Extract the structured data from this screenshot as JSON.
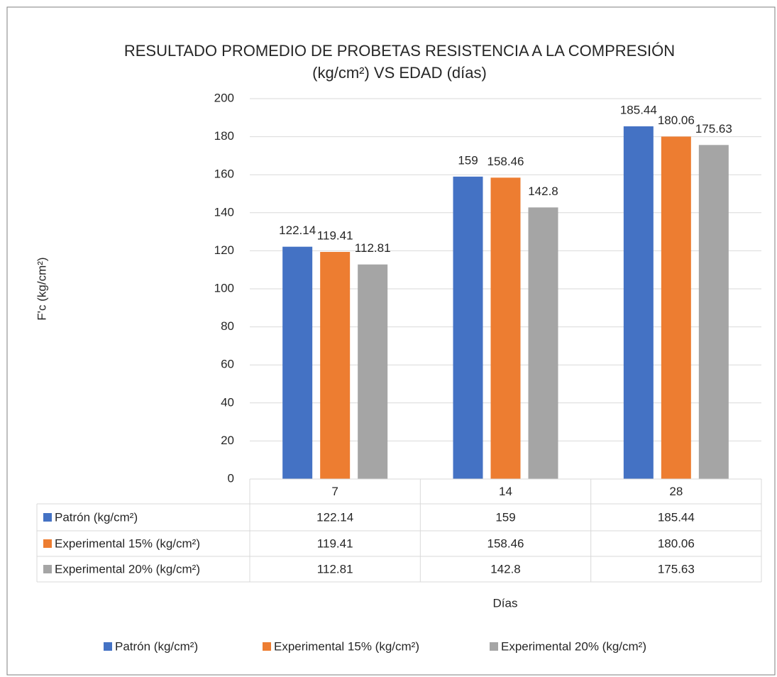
{
  "chart_data": {
    "type": "bar",
    "title": "RESULTADO PROMEDIO DE PROBETAS RESISTENCIA A LA COMPRESIÓN (kg/cm²) VS EDAD (días)",
    "x_label": "Días",
    "y_label": "F'c (kg/cm²)",
    "categories": [
      "7",
      "14",
      "28"
    ],
    "series": [
      {
        "name": "Patrón (kg/cm²)",
        "color": "#4472c4",
        "values": [
          122.14,
          159,
          185.44
        ]
      },
      {
        "name": "Experimental 15% (kg/cm²)",
        "color": "#ed7d31",
        "values": [
          119.41,
          158.46,
          180.06
        ]
      },
      {
        "name": "Experimental 20% (kg/cm²)",
        "color": "#a5a5a5",
        "values": [
          112.81,
          142.8,
          175.63
        ]
      }
    ],
    "ylim": [
      0,
      200
    ],
    "yticks": [
      0,
      20,
      40,
      60,
      80,
      100,
      120,
      140,
      160,
      180,
      200
    ],
    "grid": true,
    "legend": "bottom",
    "data_table": true
  }
}
